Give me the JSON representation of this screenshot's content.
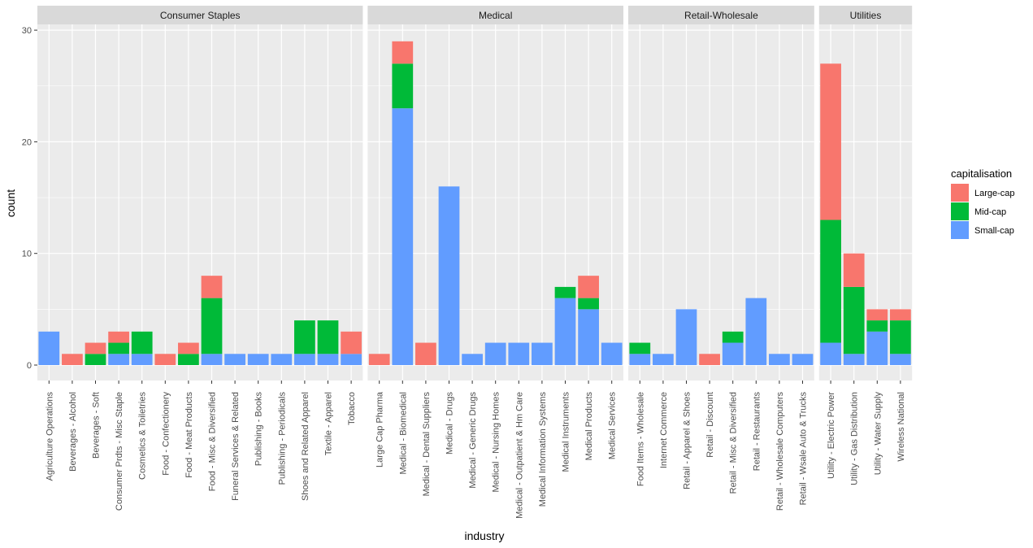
{
  "chart_data": {
    "type": "bar",
    "stacked": true,
    "xlabel": "industry",
    "ylabel": "count",
    "ylim": [
      0,
      30
    ],
    "yticks": [
      0,
      10,
      20,
      30
    ],
    "legend": {
      "title": "capitalisation",
      "placement": "right",
      "entries": [
        "Large-cap",
        "Mid-cap",
        "Small-cap"
      ]
    },
    "colors": {
      "Large-cap": "#F8766D",
      "Mid-cap": "#00BA38",
      "Small-cap": "#619CFF",
      "panel": "#EBEBEB",
      "strip": "#D9D9D9",
      "highlight_label": "#CC0000"
    },
    "highlighted_category": "Textile - Apparel",
    "facets": [
      {
        "name": "Consumer Staples",
        "categories": [
          {
            "name": "Agriculture Operations",
            "Large-cap": 0,
            "Mid-cap": 0,
            "Small-cap": 3
          },
          {
            "name": "Beverages - Alcohol",
            "Large-cap": 1,
            "Mid-cap": 0,
            "Small-cap": 0
          },
          {
            "name": "Beverages - Soft",
            "Large-cap": 1,
            "Mid-cap": 1,
            "Small-cap": 0
          },
          {
            "name": "Consumer Prdts - Misc Staple",
            "Large-cap": 1,
            "Mid-cap": 1,
            "Small-cap": 1
          },
          {
            "name": "Cosmetics & Toiletries",
            "Large-cap": 0,
            "Mid-cap": 2,
            "Small-cap": 1
          },
          {
            "name": "Food - Confectionery",
            "Large-cap": 1,
            "Mid-cap": 0,
            "Small-cap": 0
          },
          {
            "name": "Food - Meat Products",
            "Large-cap": 1,
            "Mid-cap": 1,
            "Small-cap": 0
          },
          {
            "name": "Food - Misc & Diversified",
            "Large-cap": 2,
            "Mid-cap": 5,
            "Small-cap": 1
          },
          {
            "name": "Funeral Services & Related",
            "Large-cap": 0,
            "Mid-cap": 0,
            "Small-cap": 1
          },
          {
            "name": "Publishing - Books",
            "Large-cap": 0,
            "Mid-cap": 0,
            "Small-cap": 1
          },
          {
            "name": "Publishing - Periodicals",
            "Large-cap": 0,
            "Mid-cap": 0,
            "Small-cap": 1
          },
          {
            "name": "Shoes and Related Apparel",
            "Large-cap": 0,
            "Mid-cap": 3,
            "Small-cap": 1
          },
          {
            "name": "Textile - Apparel",
            "Large-cap": 0,
            "Mid-cap": 3,
            "Small-cap": 1
          },
          {
            "name": "Tobacco",
            "Large-cap": 2,
            "Mid-cap": 0,
            "Small-cap": 1
          }
        ]
      },
      {
        "name": "Medical",
        "categories": [
          {
            "name": "Large Cap Pharma",
            "Large-cap": 1,
            "Mid-cap": 0,
            "Small-cap": 0
          },
          {
            "name": "Medical - Biomedical",
            "Large-cap": 2,
            "Mid-cap": 4,
            "Small-cap": 23
          },
          {
            "name": "Medical - Dental Suppliers",
            "Large-cap": 2,
            "Mid-cap": 0,
            "Small-cap": 0
          },
          {
            "name": "Medical - Drugs",
            "Large-cap": 0,
            "Mid-cap": 0,
            "Small-cap": 16
          },
          {
            "name": "Medical - Generic Drugs",
            "Large-cap": 0,
            "Mid-cap": 0,
            "Small-cap": 1
          },
          {
            "name": "Medical - Nursing Homes",
            "Large-cap": 0,
            "Mid-cap": 0,
            "Small-cap": 2
          },
          {
            "name": "Medical - Outpatient & Hm Care",
            "Large-cap": 0,
            "Mid-cap": 0,
            "Small-cap": 2
          },
          {
            "name": "Medical Information Systems",
            "Large-cap": 0,
            "Mid-cap": 0,
            "Small-cap": 2
          },
          {
            "name": "Medical Instruments",
            "Large-cap": 0,
            "Mid-cap": 1,
            "Small-cap": 6
          },
          {
            "name": "Medical Products",
            "Large-cap": 2,
            "Mid-cap": 1,
            "Small-cap": 5
          },
          {
            "name": "Medical Services",
            "Large-cap": 0,
            "Mid-cap": 0,
            "Small-cap": 2
          }
        ]
      },
      {
        "name": "Retail-Wholesale",
        "categories": [
          {
            "name": "Food Items - Wholesale",
            "Large-cap": 0,
            "Mid-cap": 1,
            "Small-cap": 1
          },
          {
            "name": "Internet Commerce",
            "Large-cap": 0,
            "Mid-cap": 0,
            "Small-cap": 1
          },
          {
            "name": "Retail - Apparel & Shoes",
            "Large-cap": 0,
            "Mid-cap": 0,
            "Small-cap": 5
          },
          {
            "name": "Retail - Discount",
            "Large-cap": 1,
            "Mid-cap": 0,
            "Small-cap": 0
          },
          {
            "name": "Retail - Misc & Diversified",
            "Large-cap": 0,
            "Mid-cap": 1,
            "Small-cap": 2
          },
          {
            "name": "Retail - Restaurants",
            "Large-cap": 0,
            "Mid-cap": 0,
            "Small-cap": 6
          },
          {
            "name": "Retail - Wholesale Computers",
            "Large-cap": 0,
            "Mid-cap": 0,
            "Small-cap": 1
          },
          {
            "name": "Retail - Wsale Auto & Trucks",
            "Large-cap": 0,
            "Mid-cap": 0,
            "Small-cap": 1
          }
        ]
      },
      {
        "name": "Utilities",
        "categories": [
          {
            "name": "Utility - Electric Power",
            "Large-cap": 14,
            "Mid-cap": 11,
            "Small-cap": 2
          },
          {
            "name": "Utility - Gas Distribution",
            "Large-cap": 3,
            "Mid-cap": 6,
            "Small-cap": 1
          },
          {
            "name": "Utility - Water Supply",
            "Large-cap": 1,
            "Mid-cap": 1,
            "Small-cap": 3
          },
          {
            "name": "Wireless National",
            "Large-cap": 1,
            "Mid-cap": 3,
            "Small-cap": 1
          }
        ]
      }
    ]
  }
}
